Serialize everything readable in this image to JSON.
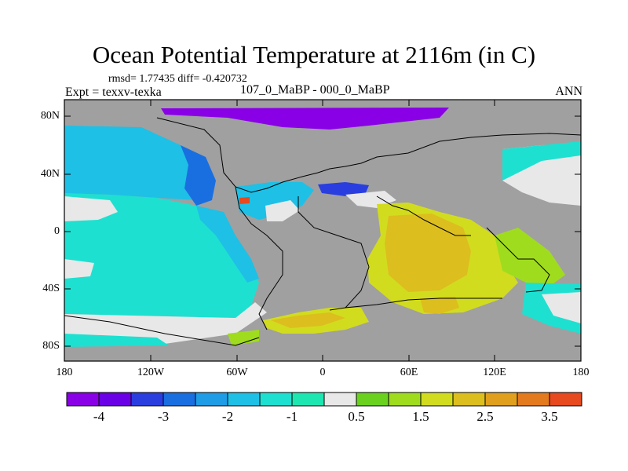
{
  "title": "Ocean Potential Temperature at 2116m (in C)",
  "stats": "rmsd= 1.77435 diff= -0.420732",
  "experiment": "Expt = texxv-texka",
  "subtitle": "107_0_MaBP - 000_0_MaBP",
  "season": "ANN",
  "lat_labels": [
    "80N",
    "40N",
    "0",
    "40S",
    "80S"
  ],
  "lon_labels": [
    "180",
    "120W",
    "60W",
    "0",
    "60E",
    "120E",
    "180"
  ],
  "colorbar": {
    "colors": [
      "#8a00e6",
      "#6a00e6",
      "#2a3ee0",
      "#1a6fe0",
      "#1e9ce6",
      "#1ec0e6",
      "#1ee0d0",
      "#1ee6b0",
      "#e8e8e8",
      "#6ad21e",
      "#a0dc1e",
      "#d2dc1e",
      "#dcbe1e",
      "#e0a01e",
      "#e47a1e",
      "#e64a1e"
    ],
    "labels": [
      "-4",
      "-3",
      "-2",
      "-1",
      "0.5",
      "1.5",
      "2.5",
      "3.5"
    ]
  },
  "colors": {
    "land": "#a0a0a0",
    "missing": "#e8e8e8",
    "coast": "#000000"
  }
}
